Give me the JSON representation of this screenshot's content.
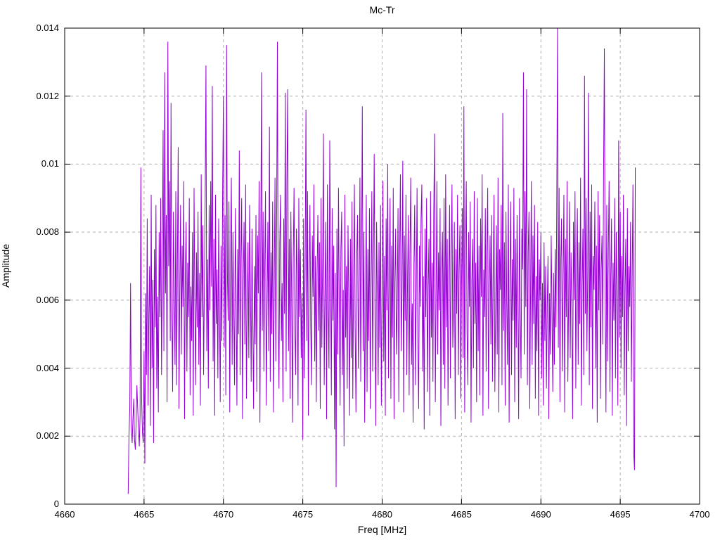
{
  "figure": {
    "title": "Mc-Tr",
    "xlabel": "Freq [MHz]",
    "ylabel": "Amplitude"
  },
  "colors": {
    "background": "#ffffff",
    "line": "#9400d3",
    "grid": "#b0b0b0",
    "axis": "#000000",
    "text": "#000000"
  },
  "chart_data": {
    "type": "line",
    "title": "Mc-Tr",
    "xlabel": "Freq [MHz]",
    "ylabel": "Amplitude",
    "xlim": [
      4660,
      4700
    ],
    "ylim": [
      0,
      0.014
    ],
    "x_ticks": [
      4660,
      4665,
      4670,
      4675,
      4680,
      4685,
      4690,
      4695,
      4700
    ],
    "x_tick_labels": [
      "4660",
      "4665",
      "4670",
      "4675",
      "4680",
      "4685",
      "4690",
      "4695",
      "4700"
    ],
    "y_ticks": [
      0,
      0.002,
      0.004,
      0.006,
      0.008,
      0.01,
      0.012,
      0.014
    ],
    "y_tick_labels": [
      "0",
      "0.002",
      "0.004",
      "0.006",
      "0.008",
      "0.01",
      "0.012",
      "0.014"
    ],
    "grid": true,
    "grid_style": "dashed",
    "legend_position": "none",
    "series": [
      {
        "name": "Mc-Tr",
        "color": "#9400d3",
        "x_start": 4664.0,
        "x_step": 0.05,
        "amplitude_unit": 0.0001,
        "values": [
          3,
          20,
          28,
          65,
          22,
          18,
          25,
          31,
          19,
          16,
          24,
          35,
          28,
          22,
          17,
          26,
          99,
          30,
          21,
          18,
          45,
          12,
          62,
          38,
          84,
          29,
          55,
          70,
          23,
          91,
          40,
          66,
          18,
          75,
          52,
          88,
          34,
          61,
          27,
          80,
          55,
          90,
          38,
          72,
          110,
          45,
          127,
          62,
          85,
          30,
          136,
          70,
          95,
          48,
          118,
          58,
          33,
          86,
          64,
          41,
          92,
          35,
          70,
          105,
          28,
          62,
          88,
          44,
          76,
          58,
          95,
          25,
          67,
          83,
          39,
          71,
          55,
          90,
          32,
          64,
          48,
          80,
          26,
          93,
          60,
          35,
          74,
          52,
          86,
          41,
          68,
          29,
          97,
          55,
          82,
          38,
          63,
          90,
          129,
          45,
          72,
          34,
          88,
          57,
          95,
          64,
          123,
          42,
          78,
          26,
          91,
          53,
          69,
          37,
          84,
          60,
          30,
          76,
          48,
          92,
          120,
          46,
          85,
          32,
          135,
          68,
          54,
          89,
          27,
          73,
          96,
          41,
          80,
          58,
          35,
          87,
          62,
          29,
          75,
          50,
          104,
          38,
          72,
          90,
          25,
          66,
          83,
          47,
          94,
          31,
          59,
          77,
          43,
          88,
          65,
          36,
          81,
          54,
          28,
          70,
          47,
          85,
          33,
          79,
          62,
          95,
          24,
          73,
          127,
          51,
          86,
          39,
          68,
          92,
          29,
          57,
          83,
          45,
          111,
          36,
          74,
          50,
          89,
          27,
          63,
          96,
          42,
          80,
          136,
          58,
          34,
          77,
          91,
          48,
          65,
          30,
          84,
          56,
          121,
          39,
          95,
          122,
          45,
          78,
          31,
          86,
          60,
          24,
          72,
          93,
          52,
          38,
          81,
          67,
          29,
          90,
          55,
          75,
          43,
          62,
          19,
          84,
          37,
          70,
          116,
          48,
          92,
          26,
          64,
          88,
          53,
          35,
          79,
          61,
          94,
          42,
          73,
          30,
          67,
          85,
          51,
          77,
          28,
          90,
          46,
          72,
          109,
          35,
          62,
          83,
          25,
          94,
          58,
          40,
          107,
          69,
          32,
          87,
          54,
          76,
          22,
          68,
          5,
          81,
          44,
          93,
          57,
          29,
          75,
          86,
          38,
          63,
          17,
          91,
          49,
          70,
          34,
          82,
          59,
          26,
          78,
          43,
          89,
          31,
          66,
          94,
          52,
          27,
          73,
          85,
          40,
          61,
          96,
          36,
          69,
          117,
          45,
          80,
          24,
          57,
          91,
          33,
          75,
          48,
          87,
          28,
          64,
          92,
          39,
          70,
          103,
          55,
          23,
          83,
          60,
          35,
          77,
          46,
          88,
          29,
          61,
          95,
          42,
          73,
          26,
          84,
          57,
          100,
          37,
          68,
          90,
          31,
          76,
          49,
          93,
          25,
          65,
          81,
          44,
          58,
          87,
          30,
          72,
          97,
          45,
          63,
          101,
          27,
          79,
          54,
          91,
          38,
          66,
          85,
          32,
          74,
          96,
          41,
          59,
          24,
          70,
          88,
          35,
          62,
          93,
          47,
          28,
          76,
          58,
          84,
          94,
          39,
          67,
          22,
          81,
          55,
          90,
          33,
          64,
          78,
          26,
          92,
          49,
          71,
          36,
          85,
          109,
          30,
          63,
          95,
          44,
          74,
          57,
          87,
          23,
          68,
          80,
          41,
          90,
          34,
          97,
          52,
          78,
          29,
          65,
          88,
          37,
          72,
          94,
          46,
          60,
          83,
          25,
          75,
          56,
          91,
          38,
          69,
          82,
          31,
          64,
          87,
          43,
          117,
          27,
          73,
          95,
          50,
          35,
          80,
          58,
          89,
          24,
          66,
          78,
          40,
          92,
          53,
          71,
          30,
          90,
          45,
          76,
          32,
          84,
          61,
          97,
          26,
          69,
          55,
          87,
          39,
          73,
          93,
          28,
          62,
          79,
          47,
          85,
          36,
          70,
          91,
          33,
          58,
          82,
          44,
          96,
          27,
          75,
          63,
          88,
          35,
          115,
          51,
          77,
          29,
          86,
          59,
          41,
          94,
          24,
          67,
          89,
          38,
          72,
          54,
          93,
          30,
          78,
          46,
          85,
          62,
          25,
          90,
          57,
          37,
          81,
          69,
          127,
          44,
          92,
          58,
          122,
          35,
          74,
          86,
          28,
          63,
          95,
          41,
          79,
          53,
          88,
          31,
          67,
          45,
          83,
          26,
          72,
          60,
          80,
          37,
          65,
          29,
          77,
          48,
          70,
          34,
          58,
          73,
          25,
          62,
          44,
          79,
          56,
          33,
          68,
          41,
          75,
          52,
          88,
          140,
          46,
          93,
          30,
          71,
          84,
          39,
          66,
          91,
          27,
          78,
          55,
          95,
          36,
          62,
          89,
          43,
          74,
          58,
          25,
          83,
          60,
          92,
          34,
          70,
          87,
          41,
          77,
          53,
          96,
          29,
          64,
          81,
          38,
          126,
          56,
          90,
          45,
          68,
          121,
          35,
          86,
          52,
          94,
          28,
          73,
          63,
          89,
          40,
          76,
          24,
          92,
          57,
          85,
          31,
          69,
          79,
          47,
          98,
          134,
          59,
          27,
          88,
          42,
          75,
          95,
          33,
          67,
          84,
          26,
          71,
          54,
          90,
          37,
          80,
          62,
          29,
          107,
          49,
          86,
          40,
          73,
          55,
          91,
          32,
          64,
          78,
          23,
          87,
          45,
          70,
          58,
          83,
          36,
          66,
          94,
          15,
          10,
          99
        ]
      }
    ]
  }
}
